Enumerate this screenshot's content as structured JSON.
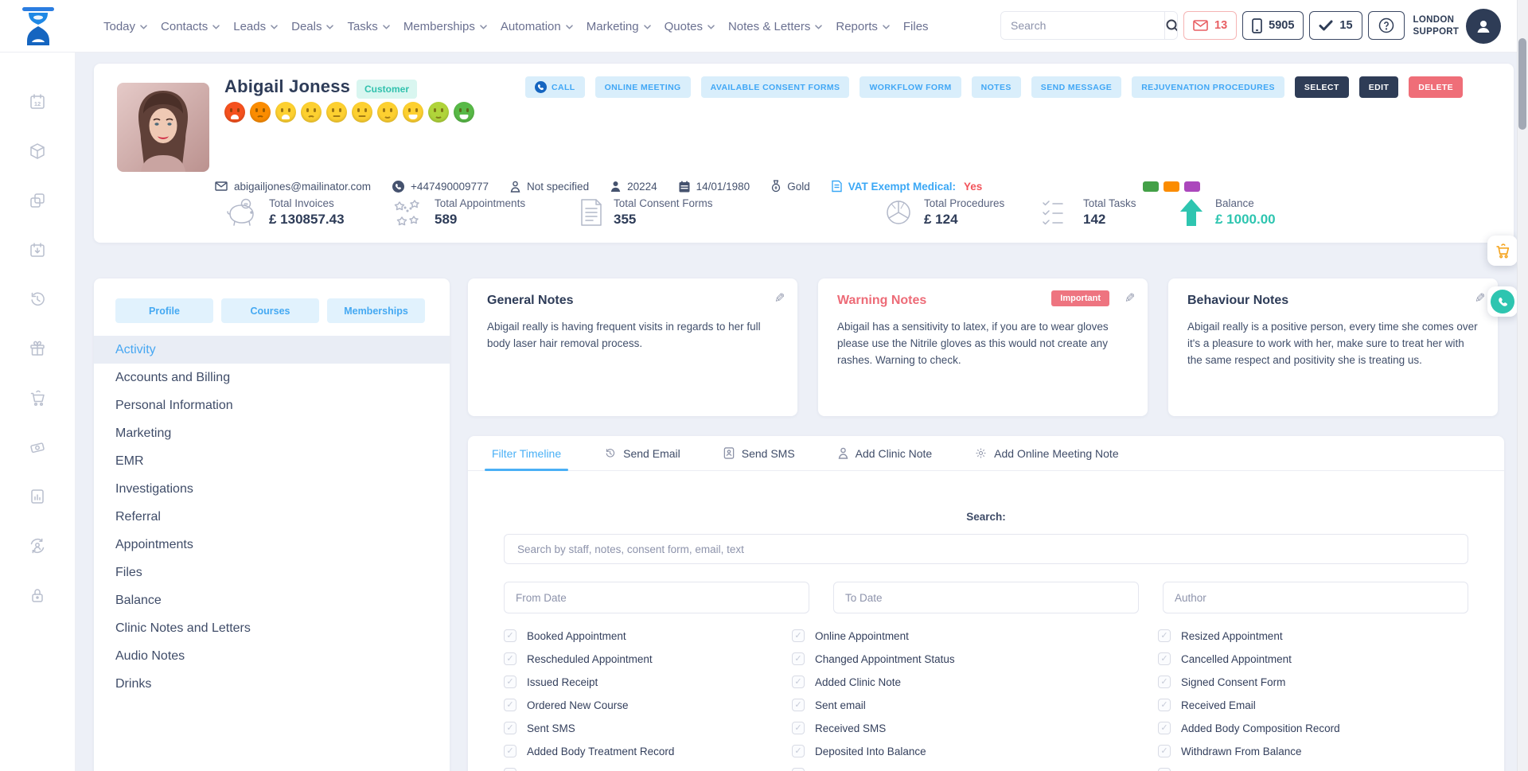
{
  "topbar": {
    "nav": [
      {
        "label": "Today",
        "chevron": true
      },
      {
        "label": "Contacts",
        "chevron": true
      },
      {
        "label": "Leads",
        "chevron": true
      },
      {
        "label": "Deals",
        "chevron": true
      },
      {
        "label": "Tasks",
        "chevron": true
      },
      {
        "label": "Memberships",
        "chevron": true
      },
      {
        "label": "Automation",
        "chevron": true
      },
      {
        "label": "Marketing",
        "chevron": true
      },
      {
        "label": "Quotes",
        "chevron": true
      },
      {
        "label": "Notes & Letters",
        "chevron": true
      },
      {
        "label": "Reports",
        "chevron": true
      },
      {
        "label": "Files",
        "chevron": false
      }
    ],
    "search_placeholder": "Search",
    "mail_count": "13",
    "sms_count": "5905",
    "task_count": "15",
    "account_line1": "LONDON",
    "account_line2": "SUPPORT"
  },
  "profile": {
    "name": "Abigail Joness",
    "type_badge": "Customer",
    "email": "abigailjones@mailinator.com",
    "phone": "+447490009777",
    "gender": "Not specified",
    "client_id": "20224",
    "dob": "14/01/1980",
    "tier": "Gold",
    "vat_label": "VAT Exempt Medical:",
    "vat_value": "Yes",
    "tag_colors": [
      "#43a047",
      "#fb8c00",
      "#ab47bc"
    ],
    "mood_faces": [
      {
        "color": "#f4511e",
        "mouth": "sad-open"
      },
      {
        "color": "#fb8c00",
        "mouth": "sad"
      },
      {
        "color": "#fdd030",
        "mouth": "sad-open"
      },
      {
        "color": "#fdd030",
        "mouth": "sad"
      },
      {
        "color": "#fdd030",
        "mouth": "neutral"
      },
      {
        "color": "#fdd030",
        "mouth": "neutral"
      },
      {
        "color": "#fdd030",
        "mouth": "smile"
      },
      {
        "color": "#fdd030",
        "mouth": "smile-open"
      },
      {
        "color": "#b0d43a",
        "mouth": "smile"
      },
      {
        "color": "#58b947",
        "mouth": "smile-open"
      }
    ],
    "actions": [
      {
        "label": "CALL",
        "style": "light",
        "icon": "call"
      },
      {
        "label": "ONLINE MEETING",
        "style": "light"
      },
      {
        "label": "AVAILABLE CONSENT FORMS",
        "style": "light"
      },
      {
        "label": "WORKFLOW FORM",
        "style": "light"
      },
      {
        "label": "NOTES",
        "style": "light"
      },
      {
        "label": "SEND MESSAGE",
        "style": "light"
      },
      {
        "label": "REJUVENATION PROCEDURES",
        "style": "light"
      },
      {
        "label": "SELECT",
        "style": "dark"
      },
      {
        "label": "EDIT",
        "style": "dark"
      },
      {
        "label": "DELETE",
        "style": "danger"
      }
    ]
  },
  "stats": [
    {
      "label": "Total Invoices",
      "value": "£ 130857.43"
    },
    {
      "label": "Total Appointments",
      "value": "589"
    },
    {
      "label": "Total Consent Forms",
      "value": "355"
    },
    {
      "label": "Total Procedures",
      "value": "£ 124"
    },
    {
      "label": "Total Tasks",
      "value": "142"
    },
    {
      "label": "Balance",
      "value": "£ 1000.00"
    }
  ],
  "left_panel": {
    "tabs": [
      {
        "label": "Profile"
      },
      {
        "label": "Courses"
      },
      {
        "label": "Memberships"
      }
    ],
    "menu": [
      {
        "label": "Activity",
        "active": true
      },
      {
        "label": "Accounts and Billing"
      },
      {
        "label": "Personal Information"
      },
      {
        "label": "Marketing"
      },
      {
        "label": "EMR"
      },
      {
        "label": "Investigations"
      },
      {
        "label": "Referral"
      },
      {
        "label": "Appointments"
      },
      {
        "label": "Files"
      },
      {
        "label": "Balance"
      },
      {
        "label": "Clinic Notes and Letters"
      },
      {
        "label": "Audio Notes"
      },
      {
        "label": "Drinks"
      }
    ]
  },
  "notes": {
    "general": {
      "title": "General Notes",
      "body": "Abigail really is having frequent visits in regards to her full body laser hair removal process."
    },
    "warning": {
      "title": "Warning Notes",
      "badge": "Important",
      "body": "Abigail has a sensitivity to latex, if you are to wear gloves please use the Nitrile gloves as this would not create any rashes. Warning to check."
    },
    "behaviour": {
      "title": "Behaviour Notes",
      "body": "Abigail really is a positive person, every time she comes over it's a pleasure to work with her, make sure to treat her with the same respect and positivity she is treating us."
    }
  },
  "timeline": {
    "tabs": [
      {
        "label": "Filter Timeline",
        "active": true
      },
      {
        "label": "Send Email",
        "icon": "history"
      },
      {
        "label": "Send SMS",
        "icon": "sms"
      },
      {
        "label": "Add Clinic Note",
        "icon": "person"
      },
      {
        "label": "Add Online Meeting Note",
        "icon": "gear"
      }
    ],
    "search_label": "Search:",
    "search_placeholder": "Search by staff, notes, consent form, email, text",
    "date_from_placeholder": "From Date",
    "date_to_placeholder": "To Date",
    "author_placeholder": "Author",
    "filter_columns": [
      [
        "Booked Appointment",
        "Rescheduled Appointment",
        "Issued Receipt",
        "Ordered New Course",
        "Sent SMS",
        "Added Body Treatment Record"
      ],
      [
        "Online Appointment",
        "Changed Appointment Status",
        "Added Clinic Note",
        "Sent email",
        "Received SMS",
        "Deposited Into Balance"
      ],
      [
        "Resized Appointment",
        "Cancelled Appointment",
        "Signed Consent Form",
        "Received Email",
        "Added Body Composition Record",
        "Withdrawn From Balance"
      ]
    ]
  }
}
